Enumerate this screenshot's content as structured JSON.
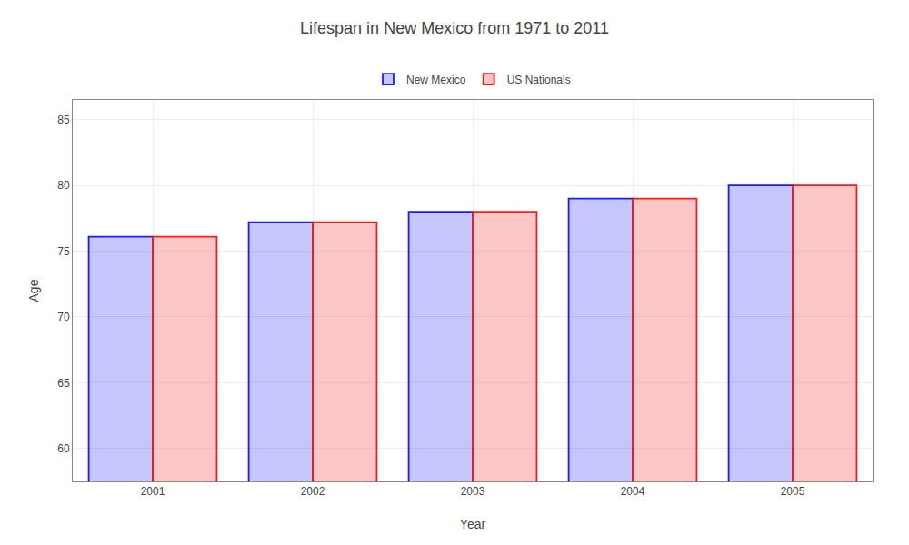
{
  "chart_data": {
    "type": "bar",
    "title": "Lifespan in New Mexico from 1971 to 2011",
    "x_label": "Year",
    "y_label": "Age",
    "categories": [
      "2001",
      "2002",
      "2003",
      "2004",
      "2005"
    ],
    "series": [
      {
        "name": "New Mexico",
        "color": "#1a1aff",
        "values": [
          76.1,
          77.2,
          78.0,
          79.0,
          80.0
        ]
      },
      {
        "name": "US Nationals",
        "color": "#ff1a1a",
        "values": [
          76.1,
          77.2,
          78.0,
          79.0,
          80.0
        ]
      }
    ],
    "ylim": [
      57.5,
      86.5
    ],
    "yticks": [
      60,
      65,
      70,
      75,
      80,
      85
    ],
    "grid": true,
    "legend": "top"
  }
}
